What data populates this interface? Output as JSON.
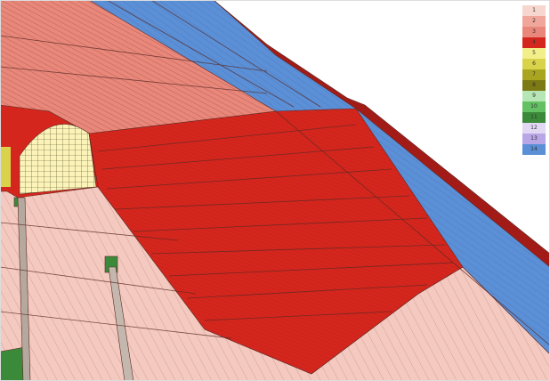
{
  "viewer": {
    "model": "tunnel portal finite element mesh",
    "colors": {
      "fill_pink": "#f4c9bf",
      "cover_salmon": "#e8877a",
      "red_shell": "#d5261d",
      "dark_red": "#a31b17",
      "blue_layer": "#5b8fd6",
      "pale_yellow": "#fbf3b8",
      "green_block": "#3a8a3a",
      "mesh_line": "#5a2a25"
    }
  },
  "legend": {
    "items": [
      {
        "label": "1",
        "color": "#f6d6cf"
      },
      {
        "label": "2",
        "color": "#f0a69b"
      },
      {
        "label": "3",
        "color": "#e8877a"
      },
      {
        "label": "4",
        "color": "#d5261d"
      },
      {
        "label": "5",
        "color": "#f2ee8a"
      },
      {
        "label": "6",
        "color": "#d8d34a"
      },
      {
        "label": "7",
        "color": "#a9a520"
      },
      {
        "label": "8",
        "color": "#7c7a14"
      },
      {
        "label": "9",
        "color": "#b6e6b6"
      },
      {
        "label": "10",
        "color": "#63c063"
      },
      {
        "label": "11",
        "color": "#3a8a3a"
      },
      {
        "label": "12",
        "color": "#e2d8f4"
      },
      {
        "label": "13",
        "color": "#b8a6e6"
      },
      {
        "label": "14",
        "color": "#5b8fd6"
      }
    ]
  }
}
